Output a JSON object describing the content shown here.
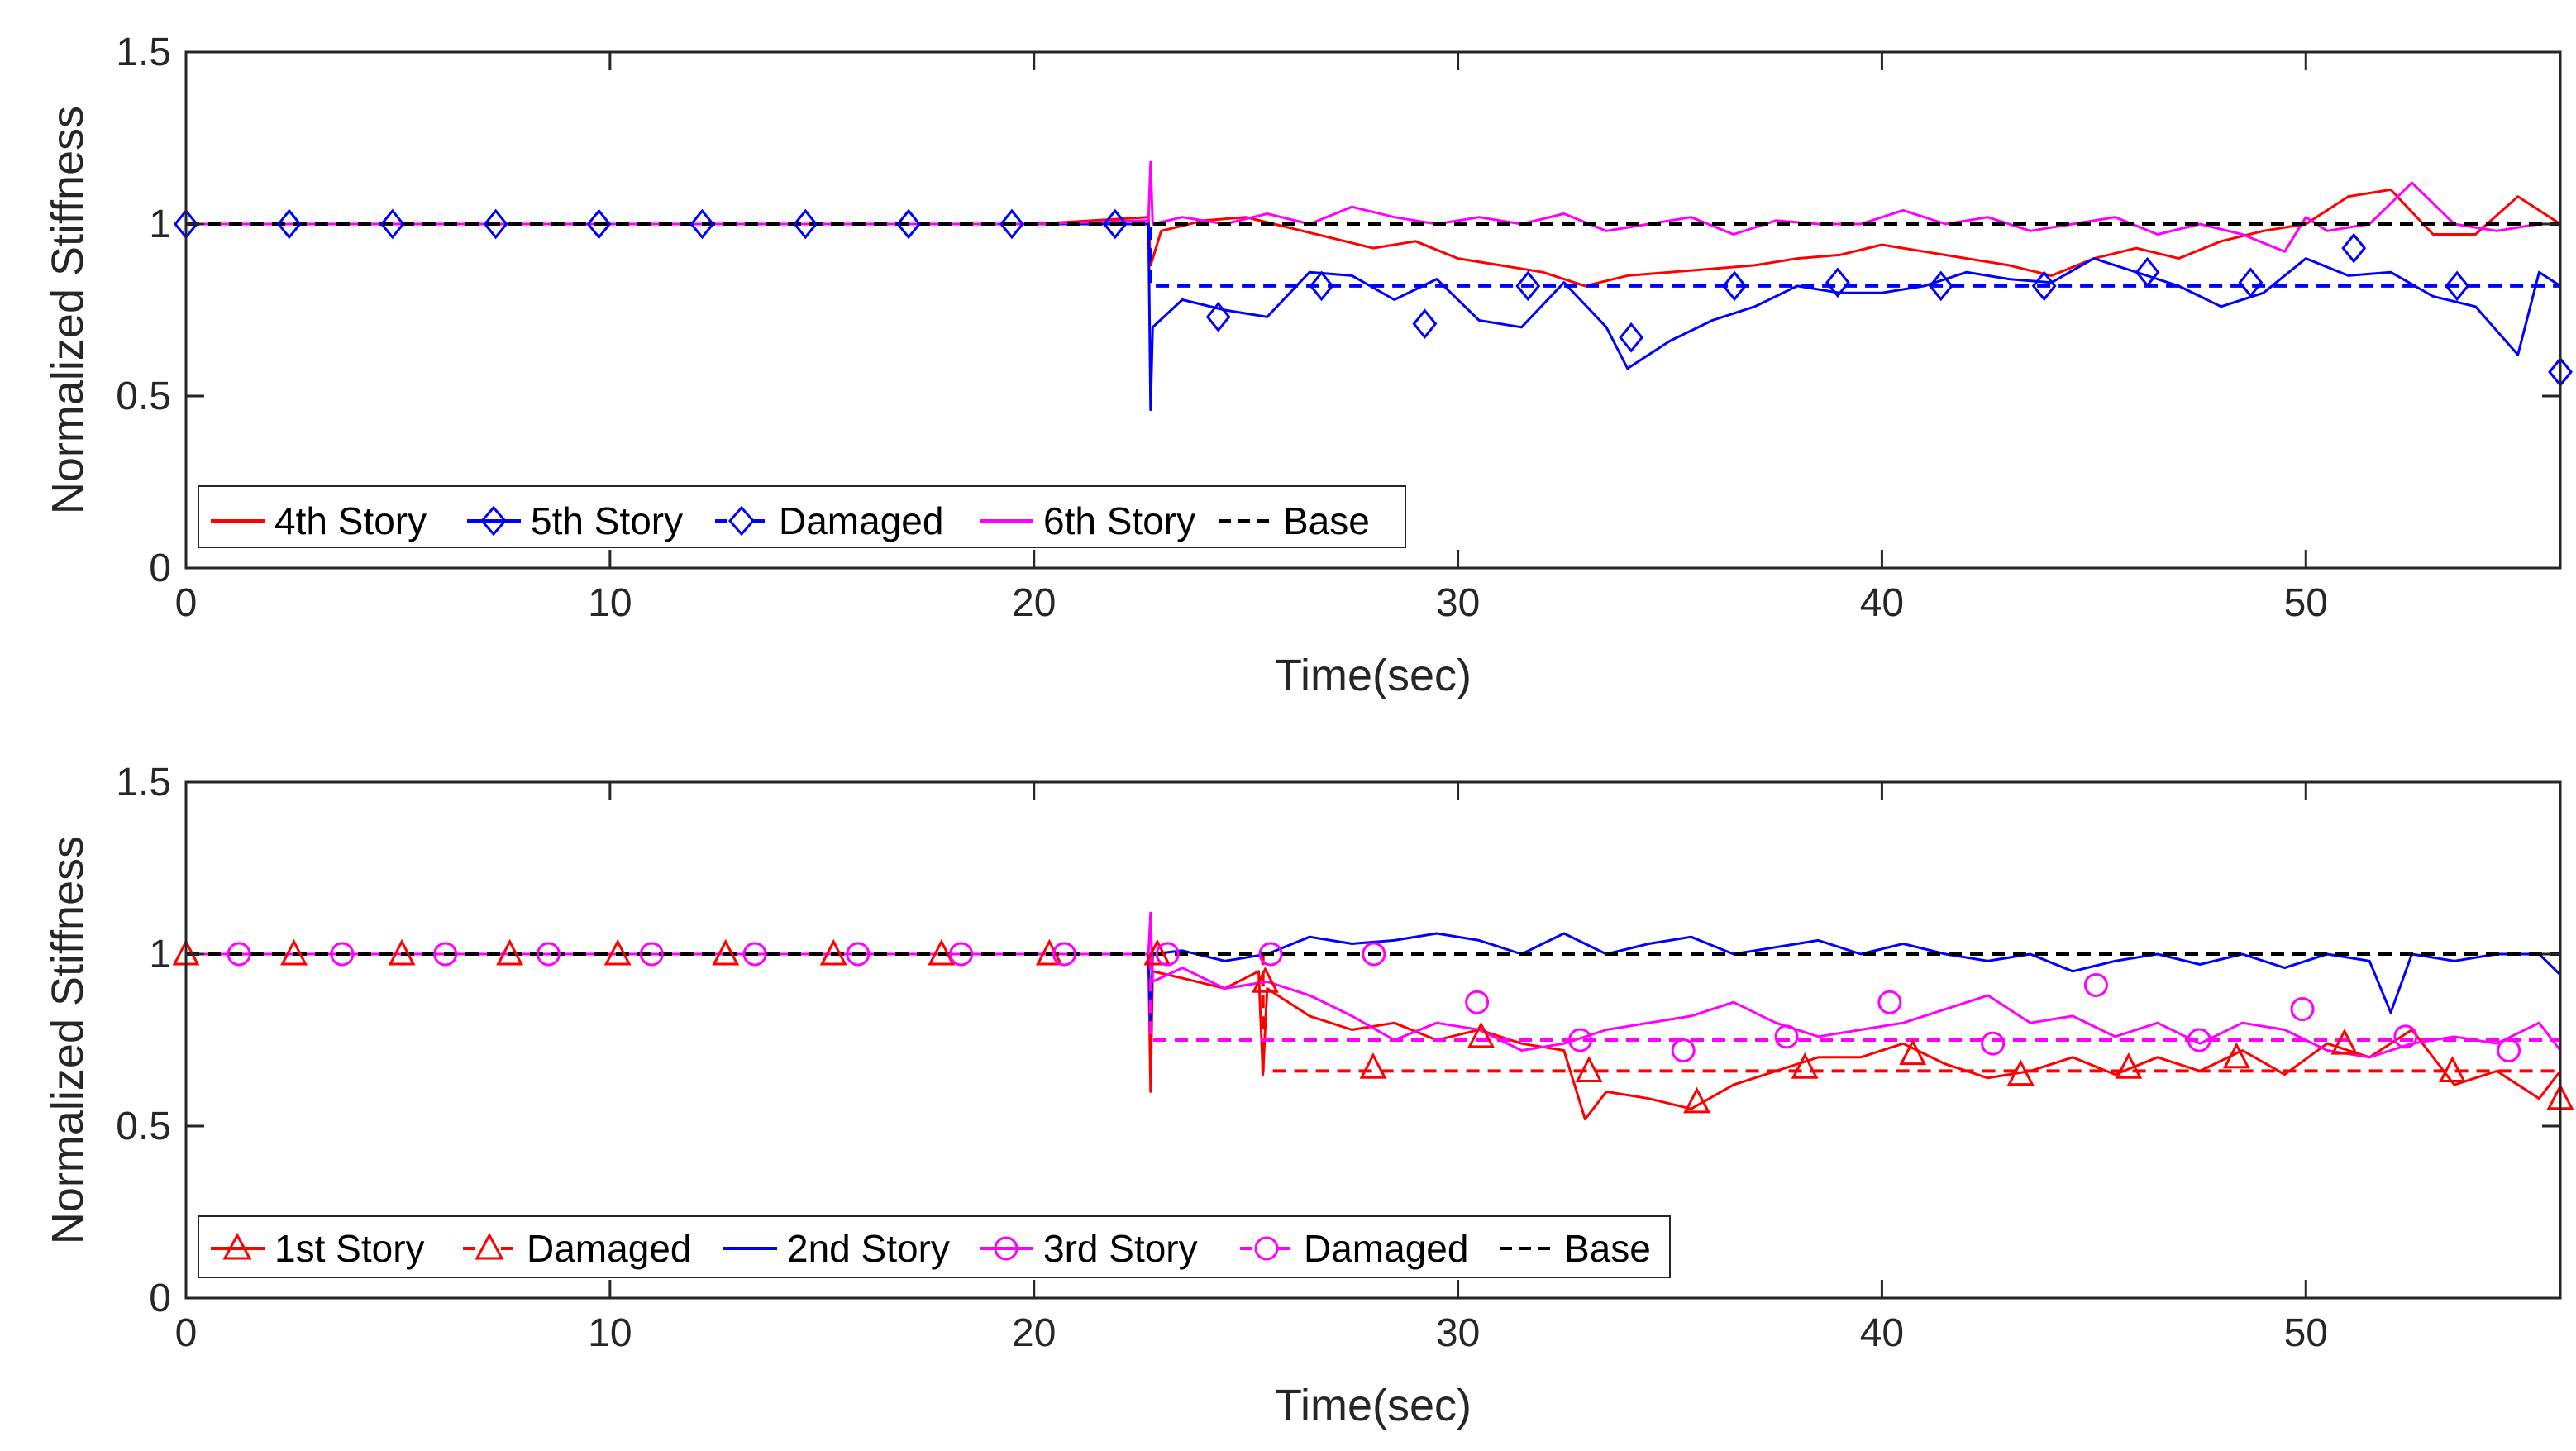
{
  "chart_data": [
    {
      "type": "line",
      "xlabel": "Time(sec)",
      "ylabel": "Normalized Stiffness",
      "xlim": [
        0,
        56
      ],
      "ylim": [
        0,
        1.5
      ],
      "xticks": [
        0,
        10,
        20,
        30,
        40,
        50
      ],
      "yticks": [
        0,
        0.5,
        1,
        1.5
      ],
      "xtick_labels": [
        "0",
        "10",
        "20",
        "30",
        "40",
        "50"
      ],
      "ytick_labels": [
        "0",
        "0.5",
        "1",
        "1.5"
      ],
      "legend_position": "bottom-left",
      "series": [
        {
          "name": "4th Story",
          "color": "#ff0000",
          "dash": "solid",
          "marker": "none",
          "x": [
            0,
            5,
            10,
            15,
            20,
            22.7,
            22.75,
            23,
            24,
            25,
            26,
            27,
            28,
            29,
            30,
            31,
            32,
            33,
            34,
            35,
            36,
            37,
            38,
            39,
            40,
            41,
            42,
            43,
            44,
            45,
            46,
            47,
            48,
            49,
            50,
            51,
            52,
            53,
            54,
            55,
            56
          ],
          "values": [
            1.0,
            1.0,
            1.0,
            1.0,
            1.0,
            1.02,
            0.88,
            0.98,
            1.01,
            1.02,
            0.99,
            0.96,
            0.93,
            0.95,
            0.9,
            0.88,
            0.86,
            0.82,
            0.85,
            0.86,
            0.87,
            0.88,
            0.9,
            0.91,
            0.94,
            0.92,
            0.9,
            0.88,
            0.85,
            0.9,
            0.93,
            0.9,
            0.95,
            0.98,
            1.0,
            1.08,
            1.1,
            0.97,
            0.97,
            1.08,
            1.0
          ]
        },
        {
          "name": "5th Story",
          "color": "#0000ff",
          "dash": "solid",
          "marker": "diamond",
          "x": [
            0,
            5,
            10,
            15,
            20,
            22.7,
            22.75,
            22.8,
            23.5,
            24.5,
            25.5,
            26.5,
            27.5,
            28.5,
            29.5,
            30.5,
            31.5,
            32.5,
            33.5,
            34,
            35,
            36,
            37,
            38,
            39,
            40,
            41,
            42,
            43,
            44,
            45,
            46,
            47,
            48,
            49,
            50,
            51,
            52,
            53,
            54,
            55,
            55.5,
            56
          ],
          "values": [
            1.0,
            1.0,
            1.0,
            1.0,
            1.0,
            1.0,
            0.46,
            0.7,
            0.78,
            0.75,
            0.73,
            0.86,
            0.85,
            0.78,
            0.84,
            0.72,
            0.7,
            0.83,
            0.7,
            0.58,
            0.66,
            0.72,
            0.76,
            0.82,
            0.8,
            0.8,
            0.82,
            0.86,
            0.84,
            0.83,
            0.9,
            0.86,
            0.82,
            0.76,
            0.8,
            0.9,
            0.85,
            0.86,
            0.79,
            0.76,
            0.62,
            0.86,
            0.82
          ],
          "marker_values": [
            1.0,
            1.0,
            1.0,
            1.0,
            1.0,
            1.0,
            1.0,
            1.0,
            1.0,
            1.0,
            0.73,
            0.82,
            0.71,
            0.82,
            0.67,
            0.82,
            0.83,
            0.82,
            0.82,
            0.86,
            0.83,
            0.93,
            0.82,
            0.57
          ]
        },
        {
          "name": "Damaged",
          "color": "#0000ff",
          "dash": "dashed",
          "marker": "diamond",
          "x": [
            0,
            22.75,
            22.75,
            56
          ],
          "values": [
            1.0,
            1.0,
            0.82,
            0.82
          ]
        },
        {
          "name": "6th Story",
          "color": "#ff00ff",
          "dash": "solid",
          "marker": "none",
          "x": [
            0,
            5,
            10,
            15,
            20,
            22.7,
            22.75,
            22.8,
            23.5,
            24.5,
            25.5,
            26.5,
            27.5,
            28.5,
            29.5,
            30.5,
            31.5,
            32.5,
            33.5,
            34.5,
            35.5,
            36.5,
            37.5,
            38.5,
            39.5,
            40.5,
            41.5,
            42.5,
            43.5,
            44.5,
            45.5,
            46.5,
            47.5,
            48.5,
            49.5,
            50,
            50.5,
            51.5,
            52.5,
            53.5,
            54.5,
            55.5,
            56
          ],
          "values": [
            1.0,
            1.0,
            1.0,
            1.0,
            1.0,
            1.01,
            1.18,
            1.0,
            1.02,
            1.0,
            1.03,
            1.0,
            1.05,
            1.02,
            1.0,
            1.02,
            1.0,
            1.03,
            0.98,
            1.0,
            1.02,
            0.97,
            1.01,
            1.0,
            1.0,
            1.04,
            1.0,
            1.02,
            0.98,
            1.0,
            1.02,
            0.97,
            1.0,
            0.97,
            0.92,
            1.02,
            0.98,
            1.0,
            1.12,
            1.0,
            0.98,
            1.0,
            1.0
          ]
        },
        {
          "name": "Base",
          "color": "#000000",
          "dash": "dashed",
          "marker": "none",
          "x": [
            0,
            56
          ],
          "values": [
            1.0,
            1.0
          ]
        }
      ]
    },
    {
      "type": "line",
      "xlabel": "Time(sec)",
      "ylabel": "Normalized Stiffness",
      "xlim": [
        0,
        56
      ],
      "ylim": [
        0,
        1.5
      ],
      "xticks": [
        0,
        10,
        20,
        30,
        40,
        50
      ],
      "yticks": [
        0,
        0.5,
        1,
        1.5
      ],
      "xtick_labels": [
        "0",
        "10",
        "20",
        "30",
        "40",
        "50"
      ],
      "ytick_labels": [
        "0",
        "0.5",
        "1",
        "1.5"
      ],
      "legend_position": "bottom-left",
      "series": [
        {
          "name": "1st Story",
          "color": "#ff0000",
          "dash": "solid",
          "marker": "triangle",
          "x": [
            0,
            5,
            10,
            15,
            20,
            22.7,
            22.75,
            22.8,
            23.5,
            24.5,
            25.3,
            25.4,
            25.5,
            26.5,
            27.5,
            28.5,
            29.5,
            30.5,
            31.5,
            32.5,
            33,
            33.5,
            34.5,
            35.5,
            36.5,
            37.5,
            38.5,
            39.5,
            40.5,
            41.5,
            42.5,
            43.5,
            44.5,
            45.5,
            46.5,
            47.5,
            48.5,
            49.5,
            50.5,
            51.5,
            52.5,
            53.5,
            54.5,
            55.5,
            56
          ],
          "values": [
            1.0,
            1.0,
            1.0,
            1.0,
            1.0,
            1.0,
            0.6,
            0.95,
            0.93,
            0.9,
            0.95,
            0.65,
            0.9,
            0.82,
            0.78,
            0.8,
            0.75,
            0.78,
            0.74,
            0.72,
            0.52,
            0.6,
            0.58,
            0.55,
            0.62,
            0.66,
            0.7,
            0.7,
            0.74,
            0.68,
            0.64,
            0.66,
            0.7,
            0.65,
            0.7,
            0.66,
            0.72,
            0.65,
            0.74,
            0.7,
            0.78,
            0.62,
            0.66,
            0.58,
            0.66
          ],
          "marker_values": [
            1.0,
            1.0,
            1.0,
            1.0,
            1.0,
            1.0,
            1.0,
            1.0,
            1.0,
            1.0,
            0.92,
            0.67,
            0.76,
            0.66,
            0.57,
            0.67,
            0.71,
            0.65,
            0.67,
            0.7,
            0.74,
            0.66,
            0.58
          ]
        },
        {
          "name": "Damaged",
          "color": "#ff0000",
          "dash": "dashed",
          "marker": "triangle",
          "x": [
            0,
            25.4,
            25.4,
            56
          ],
          "values": [
            1.0,
            1.0,
            0.66,
            0.66
          ]
        },
        {
          "name": "2nd Story",
          "color": "#0000ff",
          "dash": "solid",
          "marker": "none",
          "x": [
            0,
            5,
            10,
            15,
            20,
            22.7,
            22.75,
            22.8,
            23.5,
            24.5,
            25.5,
            26.5,
            27.5,
            28.5,
            29.5,
            30.5,
            31.5,
            32.5,
            33.5,
            34.5,
            35.5,
            36.5,
            37.5,
            38.5,
            39.5,
            40.5,
            41.5,
            42.5,
            43.5,
            44.5,
            45.5,
            46.5,
            47.5,
            48.5,
            49.5,
            50.5,
            51.5,
            52,
            52.5,
            53.5,
            54.5,
            55.5,
            56
          ],
          "values": [
            1.0,
            1.0,
            1.0,
            1.0,
            1.0,
            1.0,
            0.78,
            1.0,
            1.01,
            0.98,
            1.0,
            1.05,
            1.03,
            1.04,
            1.06,
            1.04,
            1.0,
            1.06,
            1.0,
            1.03,
            1.05,
            1.0,
            1.02,
            1.04,
            1.0,
            1.03,
            1.0,
            0.98,
            1.0,
            0.95,
            0.98,
            1.0,
            0.97,
            1.0,
            0.96,
            1.0,
            0.98,
            0.83,
            1.0,
            0.98,
            1.0,
            1.0,
            0.94
          ]
        },
        {
          "name": "3rd Story",
          "color": "#ff00ff",
          "dash": "solid",
          "marker": "circle",
          "x": [
            0,
            5,
            10,
            15,
            20,
            22.7,
            22.75,
            22.8,
            23.5,
            24.5,
            25.5,
            26.5,
            27.5,
            28.5,
            29.5,
            30.5,
            31.5,
            32.5,
            33.5,
            34.5,
            35.5,
            36.5,
            37.5,
            38.5,
            39.5,
            40.5,
            41.5,
            42.5,
            43.5,
            44.5,
            45.5,
            46.5,
            47.5,
            48.5,
            49.5,
            50.5,
            51.5,
            52.5,
            53.5,
            54.5,
            55.5,
            56
          ],
          "values": [
            1.0,
            1.0,
            1.0,
            1.0,
            1.0,
            1.0,
            1.12,
            0.92,
            0.96,
            0.9,
            0.92,
            0.88,
            0.82,
            0.75,
            0.8,
            0.78,
            0.72,
            0.74,
            0.78,
            0.8,
            0.82,
            0.86,
            0.8,
            0.76,
            0.78,
            0.8,
            0.84,
            0.88,
            0.8,
            0.82,
            0.76,
            0.8,
            0.74,
            0.8,
            0.78,
            0.72,
            0.7,
            0.74,
            0.76,
            0.74,
            0.8,
            0.72
          ],
          "marker_values": [
            1.0,
            1.0,
            1.0,
            1.0,
            1.0,
            1.0,
            1.0,
            1.0,
            1.0,
            1.0,
            1.0,
            1.0,
            0.86,
            0.75,
            0.72,
            0.76,
            0.86,
            0.74,
            0.91,
            0.75,
            0.84,
            0.76,
            0.72
          ]
        },
        {
          "name": "Damaged",
          "color": "#ff00ff",
          "dash": "dashed",
          "marker": "circle",
          "x": [
            0,
            22.75,
            22.75,
            56
          ],
          "values": [
            1.0,
            1.0,
            0.75,
            0.75
          ]
        },
        {
          "name": "Base",
          "color": "#000000",
          "dash": "dashed",
          "marker": "none",
          "x": [
            0,
            56
          ],
          "values": [
            1.0,
            1.0
          ]
        }
      ]
    }
  ]
}
